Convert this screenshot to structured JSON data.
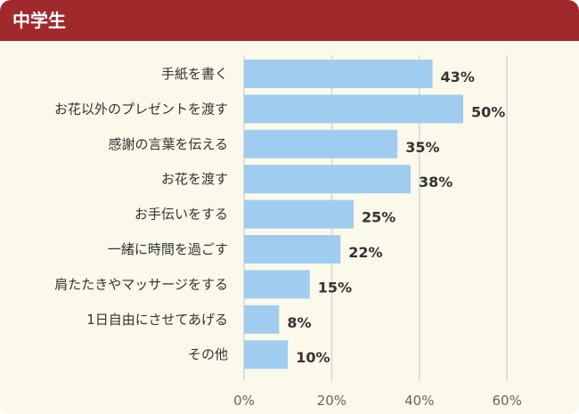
{
  "header": {
    "title": "中学生"
  },
  "colors": {
    "header": "#a0292c",
    "background": "#fbf9ea",
    "bar": "#a0cdef",
    "grid": "#d6d6d6"
  },
  "chart_data": {
    "type": "bar",
    "orientation": "horizontal",
    "categories": [
      "手紙を書く",
      "お花以外のプレゼントを渡す",
      "感謝の言葉を伝える",
      "お花を渡す",
      "お手伝いをする",
      "一緒に時間を過ごす",
      "肩たたきやマッサージをする",
      "1日自由にさせてあげる",
      "その他"
    ],
    "values": [
      43,
      50,
      35,
      38,
      25,
      22,
      15,
      8,
      10
    ],
    "value_labels": [
      "43%",
      "50%",
      "35%",
      "38%",
      "25%",
      "22%",
      "15%",
      "8%",
      "10%"
    ],
    "xlim": [
      0,
      60
    ],
    "xticks": [
      0,
      20,
      40,
      60
    ],
    "xtick_labels": [
      "0%",
      "20%",
      "40%",
      "60%"
    ],
    "grid": true
  }
}
